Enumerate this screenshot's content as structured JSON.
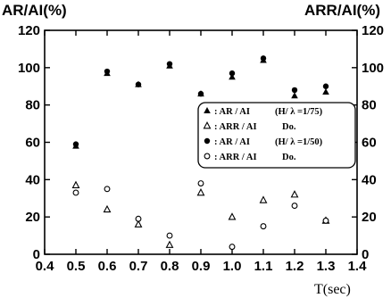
{
  "chart_data": {
    "type": "scatter",
    "left_axis_title": "AR/AI(%)",
    "right_axis_title": "ARR/AI(%)",
    "xlabel": "T(sec)",
    "xlim": [
      0.4,
      1.4
    ],
    "ylim": [
      0,
      120
    ],
    "x_ticks": [
      "0.4",
      "0.5",
      "0.6",
      "0.7",
      "0.8",
      "0.9",
      "1.0",
      "1.1",
      "1.2",
      "1.3",
      "1.4"
    ],
    "y_ticks": [
      "0",
      "20",
      "40",
      "60",
      "80",
      "100",
      "120"
    ],
    "grid": false,
    "legend_position": "right",
    "x": [
      0.5,
      0.6,
      0.7,
      0.8,
      0.9,
      1.0,
      1.1,
      1.2,
      1.3
    ],
    "series": [
      {
        "name": ": AR / AI",
        "condition": "H/ λ =1/75",
        "marker": "filled-triangle",
        "values": [
          58,
          97,
          91,
          101,
          86,
          95,
          104,
          85,
          87
        ]
      },
      {
        "name": ": ARR / AI",
        "condition": "Do.",
        "marker": "open-triangle",
        "values": [
          37,
          24,
          16,
          5,
          33,
          20,
          29,
          32,
          18
        ]
      },
      {
        "name": ": AR / AI",
        "condition": "H/ λ =1/50",
        "marker": "filled-circle",
        "values": [
          59,
          98,
          91,
          102,
          86,
          97,
          105,
          88,
          90
        ]
      },
      {
        "name": ": ARR / AI",
        "condition": "Do.",
        "marker": "open-circle",
        "values": [
          33,
          35,
          19,
          10,
          38,
          4,
          15,
          26,
          18
        ]
      }
    ]
  }
}
